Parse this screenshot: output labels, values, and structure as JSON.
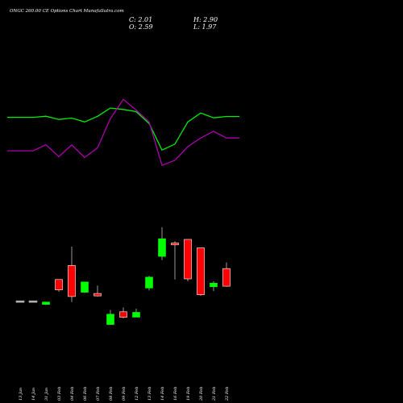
{
  "header": {
    "title": "ONGC 260.00 CE Options Chart MunafaSutra.com",
    "close_label": "C: 2.01",
    "open_label": "O: 2.59",
    "high_label": "H: 2.90",
    "low_label": "L: 1.97"
  },
  "colors": {
    "background": "#000000",
    "up": "#00ff00",
    "down": "#ff0000",
    "line_upper": "#00ee00",
    "line_lower": "#aa00aa",
    "wick": "#999999"
  },
  "chart_data": [
    {
      "type": "candlestick",
      "title": "",
      "xlabel": "",
      "ylabel": "",
      "categories": [
        "13 Jan",
        "14 Jan",
        "31 Jan",
        "03 Feb",
        "04 Feb",
        "06 Feb",
        "07 Feb",
        "08 Feb",
        "09 Feb",
        "12 Feb",
        "13 Feb",
        "14 Feb",
        "16 Feb",
        "19 Feb",
        "20 Feb",
        "21 Feb",
        "22 Feb"
      ],
      "candles": [
        {
          "open": 1.4,
          "high": 1.4,
          "low": 1.4,
          "close": 1.4,
          "direction": "flat"
        },
        {
          "open": 1.4,
          "high": 1.4,
          "low": 1.4,
          "close": 1.4,
          "direction": "flat"
        },
        {
          "open": 1.34,
          "high": 1.38,
          "low": 1.33,
          "close": 1.38,
          "direction": "up"
        },
        {
          "open": 1.75,
          "high": 1.75,
          "low": 1.55,
          "close": 1.58,
          "direction": "down"
        },
        {
          "open": 1.98,
          "high": 2.29,
          "low": 1.38,
          "close": 1.47,
          "direction": "down"
        },
        {
          "open": 1.54,
          "high": 1.71,
          "low": 1.53,
          "close": 1.71,
          "direction": "up"
        },
        {
          "open": 1.52,
          "high": 1.65,
          "low": 1.47,
          "close": 1.48,
          "direction": "down"
        },
        {
          "open": 1.01,
          "high": 1.25,
          "low": 1.01,
          "close": 1.18,
          "direction": "up"
        },
        {
          "open": 1.22,
          "high": 1.29,
          "low": 1.11,
          "close": 1.13,
          "direction": "down"
        },
        {
          "open": 1.13,
          "high": 1.27,
          "low": 1.13,
          "close": 1.21,
          "direction": "up"
        },
        {
          "open": 1.61,
          "high": 1.81,
          "low": 1.57,
          "close": 1.79,
          "direction": "up"
        },
        {
          "open": 2.13,
          "high": 2.61,
          "low": 2.07,
          "close": 2.42,
          "direction": "up"
        },
        {
          "open": 2.35,
          "high": 2.38,
          "low": 1.75,
          "close": 2.32,
          "direction": "down"
        },
        {
          "open": 2.41,
          "high": 2.41,
          "low": 1.72,
          "close": 1.76,
          "direction": "down"
        },
        {
          "open": 2.27,
          "high": 2.27,
          "low": 1.48,
          "close": 1.5,
          "direction": "down"
        },
        {
          "open": 1.63,
          "high": 1.72,
          "low": 1.56,
          "close": 1.69,
          "direction": "up"
        },
        {
          "open": 1.93,
          "high": 2.03,
          "low": 1.63,
          "close": 1.64,
          "direction": "down"
        }
      ],
      "ylim": [
        0.7,
        2.9
      ]
    },
    {
      "type": "line",
      "title": "",
      "xlabel": "",
      "ylabel": "",
      "x_index": [
        -1,
        0,
        1,
        2,
        3,
        4,
        5,
        6,
        7,
        8,
        9,
        10,
        11,
        12,
        13,
        14,
        15,
        16,
        17
      ],
      "series": [
        {
          "color": "#00ee00",
          "values": [
            0.625,
            0.625,
            0.625,
            0.635,
            0.607,
            0.619,
            0.585,
            0.634,
            0.706,
            0.694,
            0.675,
            0.571,
            0.341,
            0.393,
            0.585,
            0.663,
            0.621,
            0.633,
            0.633
          ]
        },
        {
          "color": "#aa00aa",
          "values": [
            0.335,
            0.335,
            0.335,
            0.388,
            0.284,
            0.386,
            0.277,
            0.361,
            0.615,
            0.781,
            0.688,
            0.585,
            0.209,
            0.253,
            0.371,
            0.446,
            0.504,
            0.446,
            0.446
          ]
        }
      ]
    }
  ]
}
